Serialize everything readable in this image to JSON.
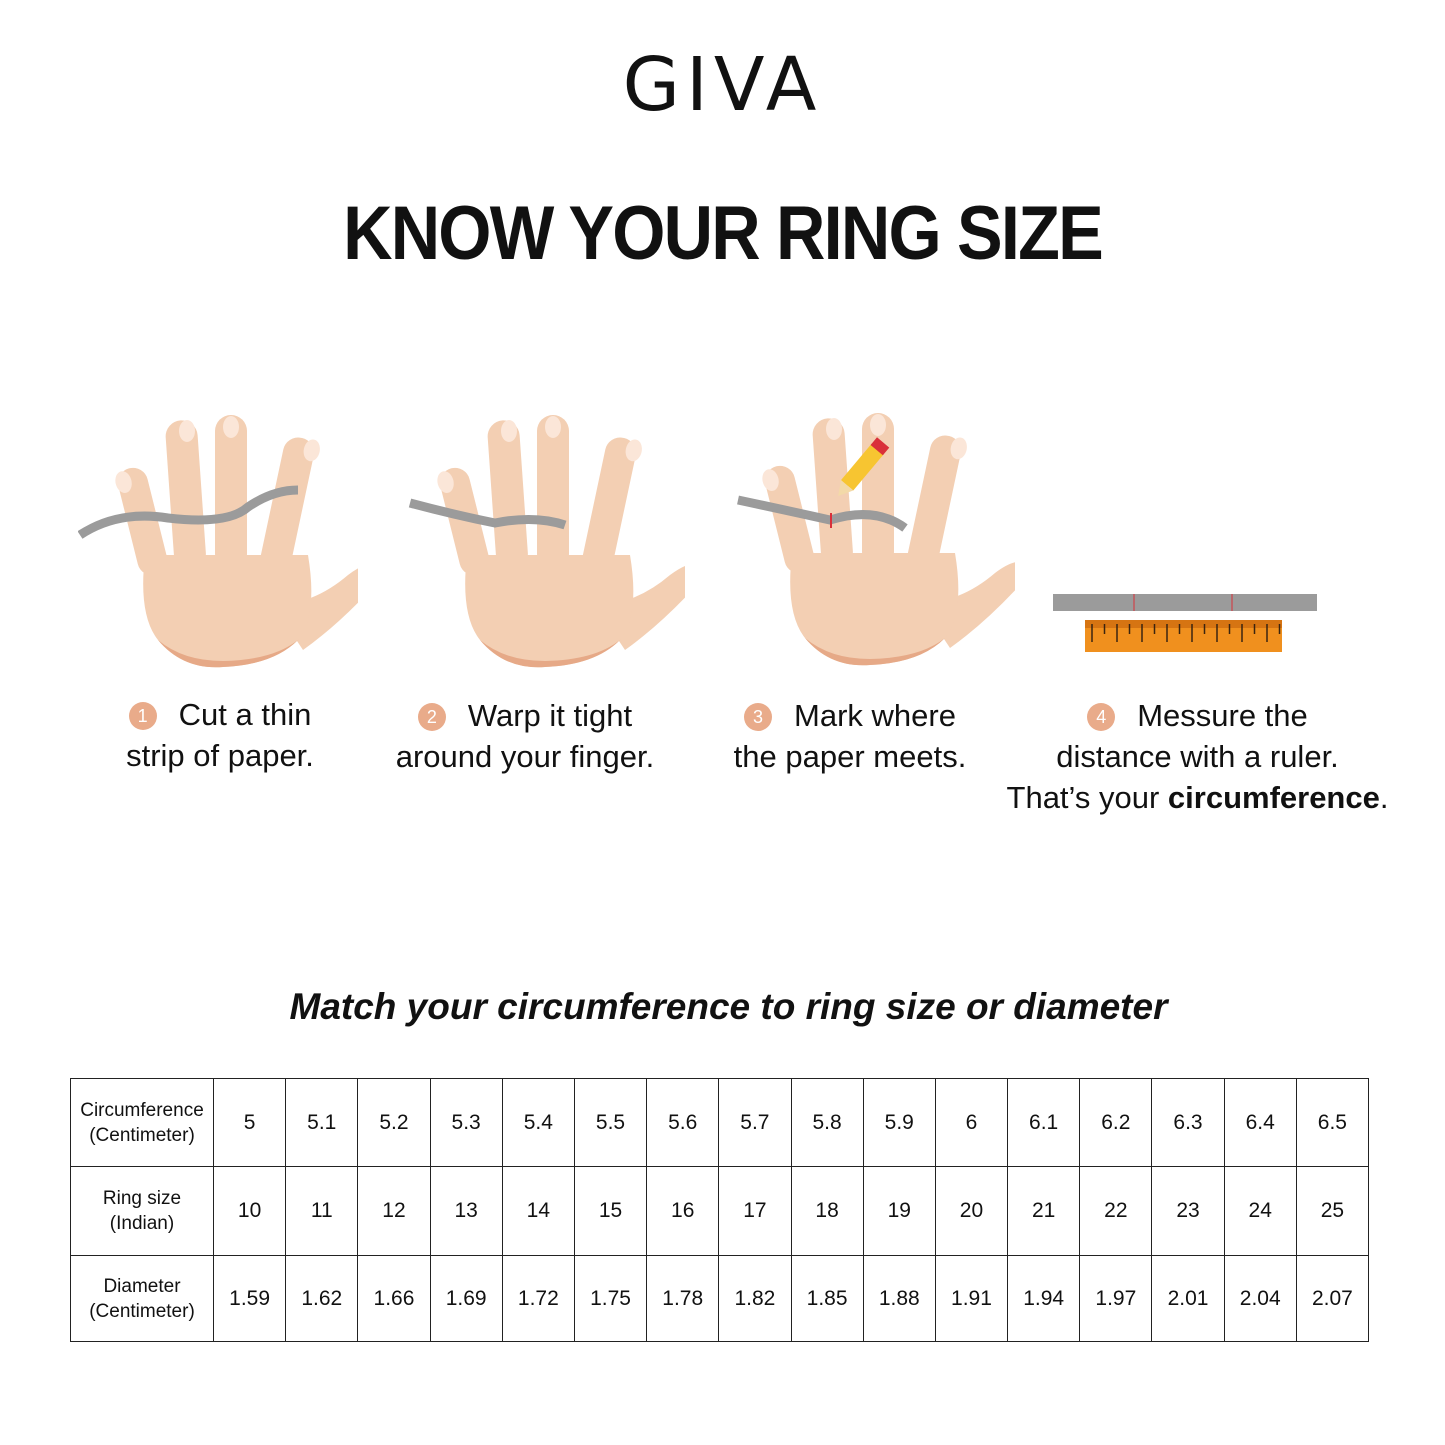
{
  "logo": "GIVA",
  "title": "KNOW YOUR RING SIZE",
  "steps": [
    {
      "number": "1",
      "line1": "Cut a thin",
      "line2": "strip of paper."
    },
    {
      "number": "2",
      "line1": "Warp it tight",
      "line2": "around your finger."
    },
    {
      "number": "3",
      "line1": "Mark where",
      "line2": "the paper meets."
    },
    {
      "number": "4",
      "line1": "Messure the",
      "line2": "distance with a ruler.",
      "line3_prefix": "That’s your ",
      "line3_bold": "circumference",
      "line3_suffix": "."
    }
  ],
  "subtitle": "Match your circumference to ring size or diameter",
  "table": {
    "rows": [
      {
        "header_line1": "Circumference",
        "header_line2": "(Centimeter)",
        "values": [
          "5",
          "5.1",
          "5.2",
          "5.3",
          "5.4",
          "5.5",
          "5.6",
          "5.7",
          "5.8",
          "5.9",
          "6",
          "6.1",
          "6.2",
          "6.3",
          "6.4",
          "6.5"
        ]
      },
      {
        "header_line1": "Ring size",
        "header_line2": "(Indian)",
        "values": [
          "10",
          "11",
          "12",
          "13",
          "14",
          "15",
          "16",
          "17",
          "18",
          "19",
          "20",
          "21",
          "22",
          "23",
          "24",
          "25"
        ]
      },
      {
        "header_line1": "Diameter",
        "header_line2": "(Centimeter)",
        "values": [
          "1.59",
          "1.62",
          "1.66",
          "1.69",
          "1.72",
          "1.75",
          "1.78",
          "1.82",
          "1.85",
          "1.88",
          "1.91",
          "1.94",
          "1.97",
          "2.01",
          "2.04",
          "2.07"
        ]
      }
    ]
  },
  "colors": {
    "skin": "#f3cfb3",
    "skin_shadow": "#e6a987",
    "paper_strip": "#9b9b9b",
    "ruler": "#f0901e",
    "step_badge": "#e9ab8a",
    "mark": "#d9303a"
  },
  "icons": [
    "hand-with-paper-strip",
    "hand-wrapped-strip",
    "hand-with-pencil",
    "paper-strip-and-ruler"
  ]
}
